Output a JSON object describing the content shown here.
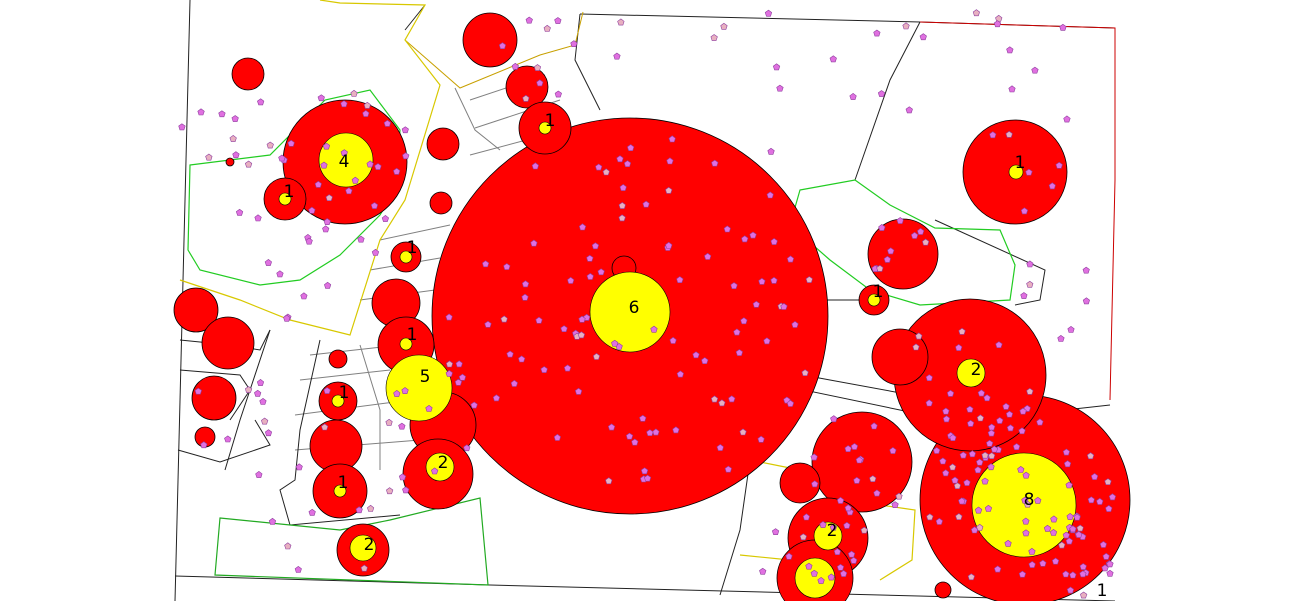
{
  "map": {
    "type": "cluster-bubble-map",
    "colors": {
      "background": "#ffffff",
      "cluster_fill": "#ff0000",
      "cluster_outline": "#000000",
      "count_fill": "#ffff00",
      "point_fill": "#e070e0",
      "point_fill_alt": "#e8b0c0",
      "point_outline": "#9040a0",
      "parcel_line": "#222222",
      "parcel_line_grey": "#808080",
      "zone_green": "#22cc22",
      "zone_yellow": "#d8c800",
      "zone_red": "#cc0000"
    },
    "cluster_labels": [
      {
        "id": "c-4",
        "text": "4"
      },
      {
        "id": "c-1a",
        "text": "1"
      },
      {
        "id": "c-1b",
        "text": "1"
      },
      {
        "id": "c-1c",
        "text": "1"
      },
      {
        "id": "c-1d",
        "text": "1"
      },
      {
        "id": "c-1e",
        "text": "1"
      },
      {
        "id": "c-5",
        "text": "5"
      },
      {
        "id": "c-6",
        "text": "6"
      },
      {
        "id": "c-1f",
        "text": "1"
      },
      {
        "id": "c-2a",
        "text": "2"
      },
      {
        "id": "c-1g",
        "text": "1"
      },
      {
        "id": "c-2b",
        "text": "2"
      },
      {
        "id": "c-1h",
        "text": "1"
      },
      {
        "id": "c-2c",
        "text": "2"
      },
      {
        "id": "c-2d",
        "text": "2"
      },
      {
        "id": "c-8",
        "text": "8"
      },
      {
        "id": "c-1i",
        "text": "1"
      }
    ]
  }
}
